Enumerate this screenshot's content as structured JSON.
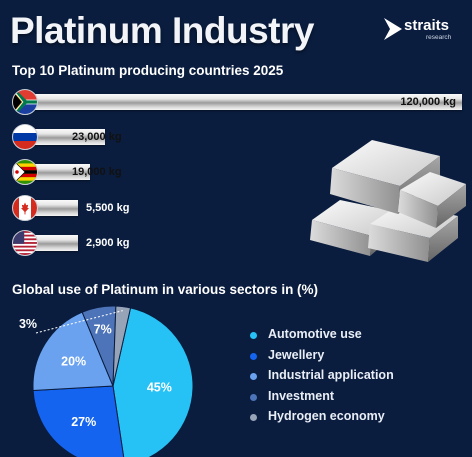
{
  "title": "Platinum Industry",
  "logo": {
    "name": "straits",
    "sub": "research"
  },
  "colors": {
    "background": "#0a1d3f",
    "bar": "silver",
    "slices": [
      "#27c2f5",
      "#1464f0",
      "#6aa2f0",
      "#4d74b8",
      "#97a4b8"
    ]
  },
  "icons": [
    "straits-logo-icon",
    "south-africa-flag-icon",
    "russia-flag-icon",
    "zimbabwe-flag-icon",
    "canada-flag-icon",
    "usa-flag-icon",
    "platinum-bars-icon"
  ],
  "chart_data": [
    {
      "type": "bar",
      "orientation": "horizontal",
      "title": "Top 10 Platinum producing countries 2025",
      "categories": [
        "South Africa",
        "Russia",
        "Zimbabwe",
        "Canada",
        "USA"
      ],
      "values": [
        120000,
        23000,
        19000,
        5500,
        2900
      ],
      "value_labels": [
        "120,000 kg",
        "23,000 kg",
        "19,000 kg",
        "5,500 kg",
        "2,900 kg"
      ],
      "unit": "kg"
    },
    {
      "type": "pie",
      "title": "Global use of Platinum in various sectors in (%)",
      "categories": [
        "Automotive use",
        "Jewellery",
        "Industrial application",
        "Investment",
        "Hydrogen economy"
      ],
      "values": [
        45,
        27,
        20,
        7,
        3
      ],
      "value_labels": [
        "45%",
        "27%",
        "20%",
        "7%",
        "3%"
      ],
      "legend": "right"
    }
  ]
}
